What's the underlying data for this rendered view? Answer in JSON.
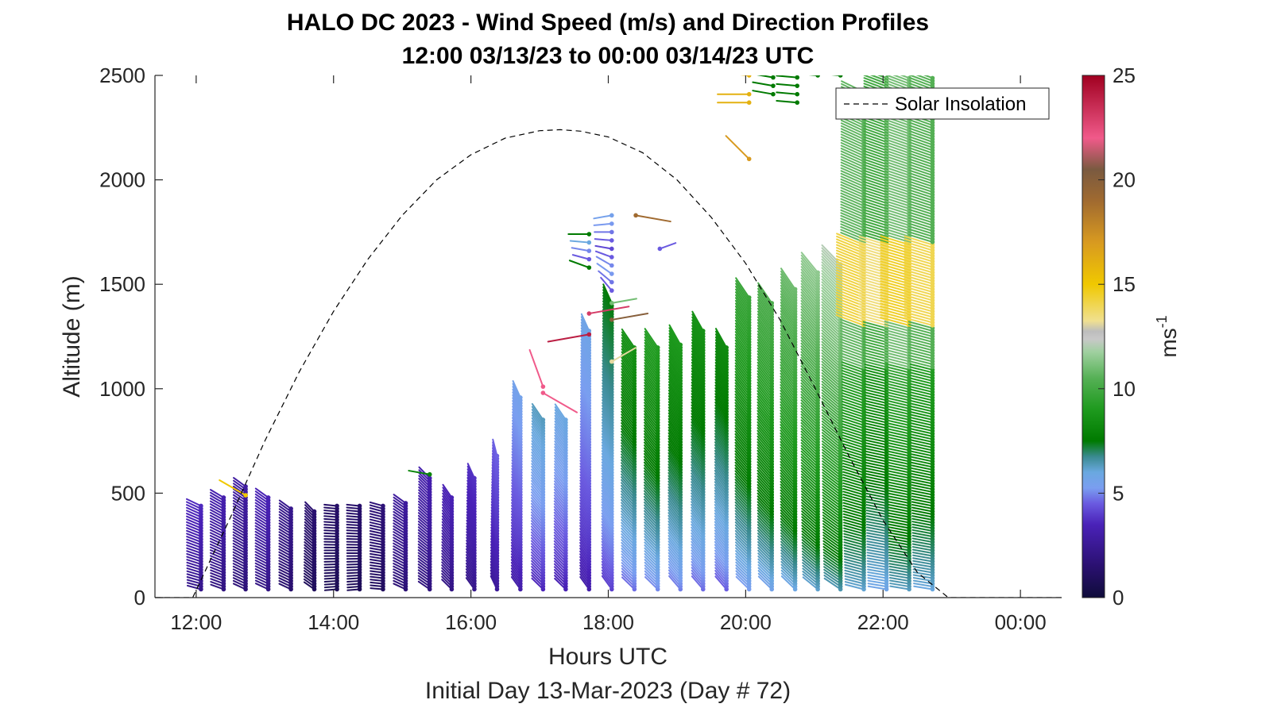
{
  "chart_data": {
    "type": "scatter",
    "title": "HALO DC 2023 - Wind Speed (m/s) and Direction Profiles",
    "subtitle": "12:00 03/13/23 to 00:00 03/14/23  UTC",
    "xlabel": "Hours UTC",
    "xlabel2": "Initial Day 13-Mar-2023 (Day # 72)",
    "ylabel": "Altitude (m)",
    "xlim": [
      11.4,
      24.6
    ],
    "ylim": [
      0,
      2500
    ],
    "x_ticks": [
      {
        "value": 12,
        "label": "12:00"
      },
      {
        "value": 14,
        "label": "14:00"
      },
      {
        "value": 16,
        "label": "16:00"
      },
      {
        "value": 18,
        "label": "18:00"
      },
      {
        "value": 20,
        "label": "20:00"
      },
      {
        "value": 22,
        "label": "22:00"
      },
      {
        "value": 24,
        "label": "00:00"
      }
    ],
    "y_ticks": [
      {
        "value": 0,
        "label": "0"
      },
      {
        "value": 500,
        "label": "500"
      },
      {
        "value": 1000,
        "label": "1000"
      },
      {
        "value": 1500,
        "label": "1500"
      },
      {
        "value": 2000,
        "label": "2000"
      },
      {
        "value": 2500,
        "label": "2500"
      }
    ],
    "colorbar": {
      "label": "ms",
      "label_sup": "-1",
      "range": [
        0,
        25
      ],
      "ticks": [
        {
          "value": 0,
          "label": "0"
        },
        {
          "value": 5,
          "label": "5"
        },
        {
          "value": 10,
          "label": "10"
        },
        {
          "value": 15,
          "label": "15"
        },
        {
          "value": 20,
          "label": "20"
        },
        {
          "value": 25,
          "label": "25"
        }
      ],
      "colors": [
        "#0f0c3a",
        "#2a1070",
        "#4a22b8",
        "#6a5ae0",
        "#7a9ef0",
        "#6aa8e0",
        "#3a8a90",
        "#007a00",
        "#1e9a1e",
        "#55b055",
        "#9fd09f",
        "#c8c8c8",
        "#f0e090",
        "#f0c800",
        "#d89a20",
        "#a06a30",
        "#7a5a40",
        "#f05a8a",
        "#a00020"
      ]
    },
    "legend": {
      "entries": [
        "Solar Insolation"
      ],
      "position": "top-right",
      "line_style": "dashed"
    },
    "solar_insolation_curve": {
      "x": [
        11.4,
        11.95,
        12.5,
        13.0,
        13.5,
        14.0,
        14.5,
        15.0,
        15.5,
        16.0,
        16.5,
        17.0,
        17.3,
        17.6,
        18.0,
        18.5,
        19.0,
        19.5,
        20.0,
        20.5,
        21.0,
        21.5,
        22.0,
        22.5,
        22.95,
        24.6
      ],
      "y": [
        0,
        0,
        385,
        750,
        1080,
        1370,
        1620,
        1830,
        2000,
        2120,
        2200,
        2235,
        2240,
        2233,
        2205,
        2130,
        2000,
        1820,
        1600,
        1330,
        1010,
        680,
        370,
        120,
        0,
        0
      ]
    },
    "wind_profiles": [
      {
        "time": 12.07,
        "top": 450,
        "speed": 3.2,
        "dir": 290
      },
      {
        "time": 12.4,
        "top": 480,
        "speed": 2.8,
        "dir": 295
      },
      {
        "time": 12.72,
        "top": 540,
        "speed": 2.5,
        "dir": 300
      },
      {
        "time": 13.05,
        "top": 490,
        "speed": 3.0,
        "dir": 300
      },
      {
        "time": 13.38,
        "top": 430,
        "speed": 2.0,
        "dir": 300
      },
      {
        "time": 13.72,
        "top": 420,
        "speed": 1.3,
        "dir": 310
      },
      {
        "time": 14.05,
        "top": 450,
        "speed": 1.1,
        "dir": 270
      },
      {
        "time": 14.38,
        "top": 450,
        "speed": 1.2,
        "dir": 270
      },
      {
        "time": 14.72,
        "top": 450,
        "speed": 1.5,
        "dir": 280
      },
      {
        "time": 15.05,
        "top": 460,
        "speed": 2.4,
        "dir": 300
      },
      {
        "time": 15.4,
        "top": 580,
        "speed": 2.8,
        "dir": 310
      },
      {
        "time": 15.72,
        "top": 490,
        "speed": 3.0,
        "dir": 320
      },
      {
        "time": 16.05,
        "top": 580,
        "speed": 3.3,
        "dir": 330
      },
      {
        "time": 16.38,
        "top": 690,
        "speed": 4.0,
        "dir": 340
      },
      {
        "time": 16.72,
        "top": 960,
        "speed": 4.8,
        "dir": 330
      },
      {
        "time": 17.05,
        "top": 860,
        "speed": 5.5,
        "dir": 320
      },
      {
        "time": 17.38,
        "top": 860,
        "speed": 5.2,
        "dir": 320
      },
      {
        "time": 17.72,
        "top": 1290,
        "speed": 5.0,
        "dir": 330
      },
      {
        "time": 18.05,
        "top": 1420,
        "speed": 6.5,
        "dir": 330
      },
      {
        "time": 18.38,
        "top": 1210,
        "speed": 7.5,
        "dir": 320
      },
      {
        "time": 18.72,
        "top": 1210,
        "speed": 8.0,
        "dir": 320
      },
      {
        "time": 19.05,
        "top": 1220,
        "speed": 7.8,
        "dir": 325
      },
      {
        "time": 19.38,
        "top": 1280,
        "speed": 7.5,
        "dir": 325
      },
      {
        "time": 19.72,
        "top": 1200,
        "speed": 7.2,
        "dir": 325
      },
      {
        "time": 20.05,
        "top": 1440,
        "speed": 8.5,
        "dir": 320
      },
      {
        "time": 20.38,
        "top": 1420,
        "speed": 9.0,
        "dir": 320
      },
      {
        "time": 20.72,
        "top": 1480,
        "speed": 9.5,
        "dir": 320
      },
      {
        "time": 21.05,
        "top": 1560,
        "speed": 10.0,
        "dir": 315
      },
      {
        "time": 21.38,
        "top": 1600,
        "speed": 10.5,
        "dir": 310
      },
      {
        "time": 21.72,
        "top": 2430,
        "speed": 10.2,
        "dir": 290
      },
      {
        "time": 22.05,
        "top": 2500,
        "speed": 9.5,
        "dir": 285
      },
      {
        "time": 22.38,
        "top": 2500,
        "speed": 10.5,
        "dir": 285
      },
      {
        "time": 22.72,
        "top": 2500,
        "speed": 10.0,
        "dir": 285
      }
    ],
    "isolated_barbs": [
      {
        "time": 17.72,
        "alt": 1740,
        "speed": 7.5,
        "dir": 270
      },
      {
        "time": 17.72,
        "alt": 1700,
        "speed": 6.0,
        "dir": 275
      },
      {
        "time": 17.72,
        "alt": 1660,
        "speed": 5.0,
        "dir": 280
      },
      {
        "time": 17.72,
        "alt": 1620,
        "speed": 4.5,
        "dir": 285
      },
      {
        "time": 17.72,
        "alt": 1580,
        "speed": 7.5,
        "dir": 290
      },
      {
        "time": 17.72,
        "alt": 1360,
        "speed": 23.0,
        "dir": 80
      },
      {
        "time": 17.72,
        "alt": 1260,
        "speed": 24.0,
        "dir": 260
      },
      {
        "time": 18.05,
        "alt": 1830,
        "speed": 5.5,
        "dir": 260
      },
      {
        "time": 18.05,
        "alt": 1790,
        "speed": 5.2,
        "dir": 265
      },
      {
        "time": 18.05,
        "alt": 1750,
        "speed": 4.8,
        "dir": 270
      },
      {
        "time": 18.05,
        "alt": 1710,
        "speed": 4.5,
        "dir": 275
      },
      {
        "time": 18.05,
        "alt": 1670,
        "speed": 4.2,
        "dir": 280
      },
      {
        "time": 18.05,
        "alt": 1630,
        "speed": 4.5,
        "dir": 290
      },
      {
        "time": 18.05,
        "alt": 1590,
        "speed": 5.0,
        "dir": 300
      },
      {
        "time": 18.05,
        "alt": 1550,
        "speed": 5.2,
        "dir": 305
      },
      {
        "time": 18.05,
        "alt": 1510,
        "speed": 4.8,
        "dir": 310
      },
      {
        "time": 18.05,
        "alt": 1470,
        "speed": 4.5,
        "dir": 320
      },
      {
        "time": 18.05,
        "alt": 1410,
        "speed": 11.0,
        "dir": 80
      },
      {
        "time": 18.05,
        "alt": 1330,
        "speed": 20.0,
        "dir": 80
      },
      {
        "time": 18.05,
        "alt": 1130,
        "speed": 13.0,
        "dir": 60
      },
      {
        "time": 18.4,
        "alt": 1830,
        "speed": 19.0,
        "dir": 100
      },
      {
        "time": 18.75,
        "alt": 1670,
        "speed": 4.5,
        "dir": 70
      },
      {
        "time": 17.05,
        "alt": 1010,
        "speed": 22.0,
        "dir": 340
      },
      {
        "time": 17.05,
        "alt": 980,
        "speed": 22.0,
        "dir": 120
      },
      {
        "time": 15.4,
        "alt": 590,
        "speed": 8.0,
        "dir": 280
      },
      {
        "time": 12.72,
        "alt": 490,
        "speed": 15.0,
        "dir": 300
      },
      {
        "time": 20.05,
        "alt": 2500,
        "speed": 16.0,
        "dir": 275
      },
      {
        "time": 20.05,
        "alt": 2410,
        "speed": 16.0,
        "dir": 270
      },
      {
        "time": 20.05,
        "alt": 2370,
        "speed": 16.0,
        "dir": 270
      },
      {
        "time": 20.05,
        "alt": 2100,
        "speed": 17.0,
        "dir": 315
      },
      {
        "time": 20.4,
        "alt": 2490,
        "speed": 7.5,
        "dir": 280
      },
      {
        "time": 20.4,
        "alt": 2450,
        "speed": 7.5,
        "dir": 280
      },
      {
        "time": 20.4,
        "alt": 2410,
        "speed": 7.5,
        "dir": 280
      },
      {
        "time": 20.75,
        "alt": 2490,
        "speed": 7.5,
        "dir": 275
      },
      {
        "time": 20.75,
        "alt": 2450,
        "speed": 7.5,
        "dir": 275
      },
      {
        "time": 20.75,
        "alt": 2410,
        "speed": 7.5,
        "dir": 275
      },
      {
        "time": 20.75,
        "alt": 2370,
        "speed": 7.5,
        "dir": 275
      },
      {
        "time": 21.05,
        "alt": 2500,
        "speed": 7.5,
        "dir": 275
      },
      {
        "time": 21.38,
        "alt": 2500,
        "speed": 7.5,
        "dir": 275
      }
    ]
  }
}
